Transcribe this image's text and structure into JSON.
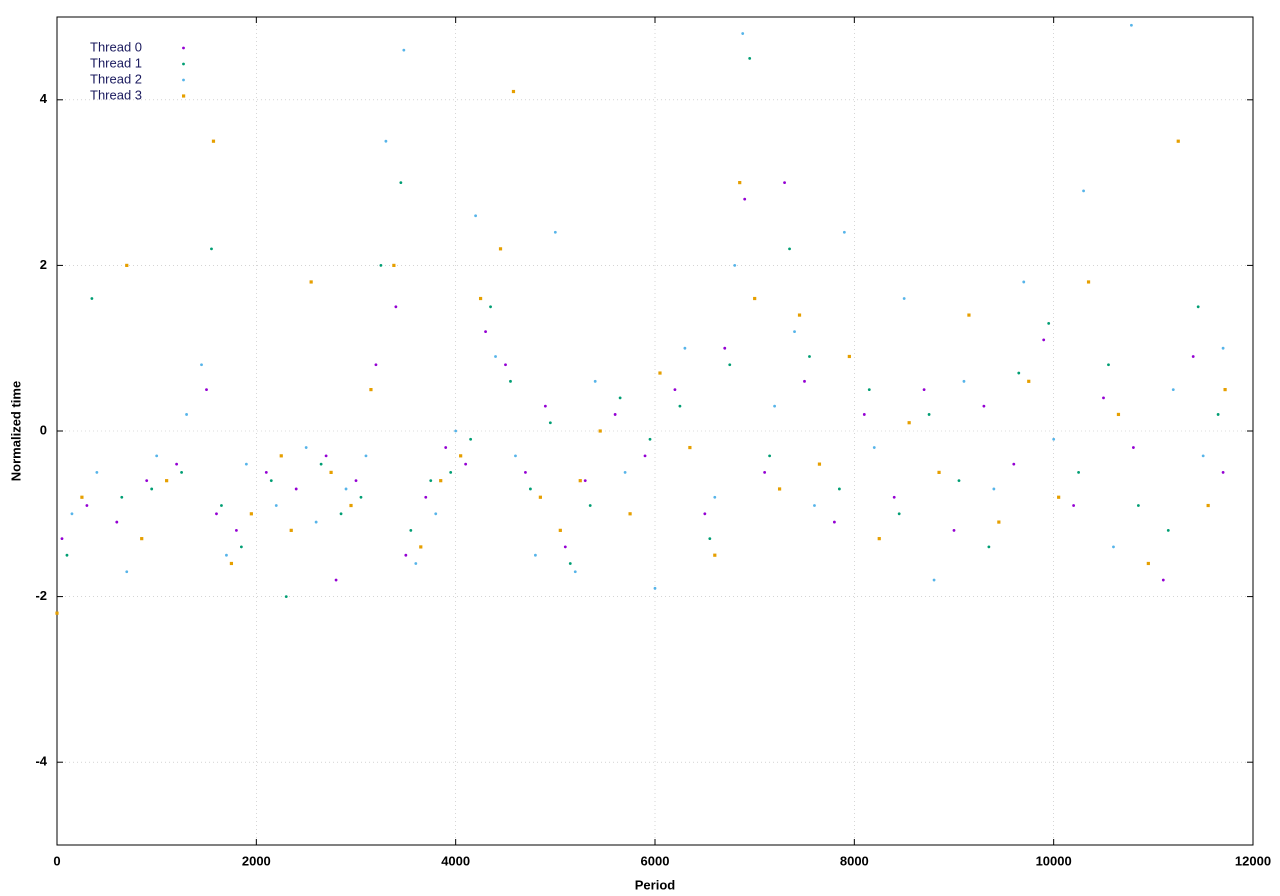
{
  "chart_data": {
    "type": "scatter",
    "x_label": "Period",
    "y_label": "Normalized time",
    "xlim": [
      0,
      12000
    ],
    "ylim": [
      -5,
      5
    ],
    "xticks": [
      0,
      2000,
      4000,
      6000,
      8000,
      10000,
      12000
    ],
    "yticks": [
      -4,
      -2,
      0,
      2,
      4
    ],
    "grid": true,
    "legend": "top-left",
    "series": [
      {
        "name": "Thread 0",
        "color": "#9400d3",
        "marker": "dot",
        "x": [
          50,
          300,
          600,
          900,
          1200,
          1500,
          1600,
          1800,
          2100,
          2400,
          2700,
          2800,
          3000,
          3200,
          3400,
          3500,
          3700,
          3900,
          4100,
          4300,
          4500,
          4700,
          4900,
          5100,
          5300,
          5600,
          5900,
          6200,
          6500,
          6700,
          6900,
          7100,
          7300,
          7500,
          7800,
          8100,
          8400,
          8700,
          9000,
          9300,
          9600,
          9900,
          10200,
          10500,
          10800,
          11100,
          11400,
          11700
        ],
        "values": [
          -1.3,
          -0.9,
          -1.1,
          -0.6,
          -0.4,
          0.5,
          -1.0,
          -1.2,
          -0.5,
          -0.7,
          -0.3,
          -1.8,
          -0.6,
          0.8,
          1.5,
          -1.5,
          -0.8,
          -0.2,
          -0.4,
          1.2,
          0.8,
          -0.5,
          0.3,
          -1.4,
          -0.6,
          0.2,
          -0.3,
          0.5,
          -1.0,
          1.0,
          2.8,
          -0.5,
          3.0,
          0.6,
          -1.1,
          0.2,
          -0.8,
          0.5,
          -1.2,
          0.3,
          -0.4,
          1.1,
          -0.9,
          0.4,
          -0.2,
          -1.8,
          0.9,
          -0.5
        ]
      },
      {
        "name": "Thread 1",
        "color": "#009e73",
        "marker": "dot",
        "x": [
          100,
          350,
          650,
          950,
          1250,
          1550,
          1650,
          1850,
          2150,
          2300,
          2650,
          2850,
          3050,
          3250,
          3450,
          3550,
          3750,
          3950,
          4150,
          4350,
          4550,
          4750,
          4950,
          5150,
          5350,
          5650,
          5950,
          6250,
          6550,
          6750,
          6950,
          7150,
          7350,
          7550,
          7850,
          8150,
          8450,
          8750,
          9050,
          9350,
          9650,
          9950,
          10250,
          10550,
          10850,
          11150,
          11450,
          11650
        ],
        "values": [
          -1.5,
          1.6,
          -0.8,
          -0.7,
          -0.5,
          2.2,
          -0.9,
          -1.4,
          -0.6,
          -2.0,
          -0.4,
          -1.0,
          -0.8,
          2.0,
          3.0,
          -1.2,
          -0.6,
          -0.5,
          -0.1,
          1.5,
          0.6,
          -0.7,
          0.1,
          -1.6,
          -0.9,
          0.4,
          -0.1,
          0.3,
          -1.3,
          0.8,
          4.5,
          -0.3,
          2.2,
          0.9,
          -0.7,
          0.5,
          -1.0,
          0.2,
          -0.6,
          -1.4,
          0.7,
          1.3,
          -0.5,
          0.8,
          -0.9,
          -1.2,
          1.5,
          0.2
        ]
      },
      {
        "name": "Thread 2",
        "color": "#56b4e9",
        "marker": "dot",
        "x": [
          150,
          400,
          700,
          1000,
          1300,
          1450,
          1700,
          1900,
          2200,
          2500,
          2600,
          2900,
          3100,
          3300,
          3480,
          3600,
          3800,
          4000,
          4200,
          4400,
          4600,
          4800,
          5000,
          5200,
          5400,
          5700,
          6000,
          6300,
          6600,
          6800,
          6880,
          7200,
          7400,
          7600,
          7900,
          8200,
          8500,
          8800,
          9100,
          9400,
          9700,
          10000,
          10300,
          10600,
          10780,
          11200,
          11500,
          11700
        ],
        "values": [
          -1.0,
          -0.5,
          -1.7,
          -0.3,
          0.2,
          0.8,
          -1.5,
          -0.4,
          -0.9,
          -0.2,
          -1.1,
          -0.7,
          -0.3,
          3.5,
          4.6,
          -1.6,
          -1.0,
          0.0,
          2.6,
          0.9,
          -0.3,
          -1.5,
          2.4,
          -1.7,
          0.6,
          -0.5,
          -1.9,
          1.0,
          -0.8,
          2.0,
          4.8,
          0.3,
          1.2,
          -0.9,
          2.4,
          -0.2,
          1.6,
          -1.8,
          0.6,
          -0.7,
          1.8,
          -0.1,
          2.9,
          -1.4,
          4.9,
          0.5,
          -0.3,
          1.0
        ]
      },
      {
        "name": "Thread 3",
        "color": "#e69f00",
        "marker": "square",
        "x": [
          0,
          250,
          700,
          850,
          1100,
          1570,
          1750,
          1950,
          2250,
          2350,
          2550,
          2750,
          2950,
          3150,
          3380,
          3650,
          3850,
          4050,
          4250,
          4450,
          4580,
          4850,
          5050,
          5250,
          5450,
          5750,
          6050,
          6350,
          6600,
          6850,
          7000,
          7250,
          7450,
          7650,
          7950,
          8250,
          8550,
          8850,
          9150,
          9450,
          9750,
          10050,
          10350,
          10650,
          10950,
          11250,
          11550,
          11720
        ],
        "values": [
          -2.2,
          -0.8,
          2.0,
          -1.3,
          -0.6,
          3.5,
          -1.6,
          -1.0,
          -0.3,
          -1.2,
          1.8,
          -0.5,
          -0.9,
          0.5,
          2.0,
          -1.4,
          -0.6,
          -0.3,
          1.6,
          2.2,
          4.1,
          -0.8,
          -1.2,
          -0.6,
          0.0,
          -1.0,
          0.7,
          -0.2,
          -1.5,
          3.0,
          1.6,
          -0.7,
          1.4,
          -0.4,
          0.9,
          -1.3,
          0.1,
          -0.5,
          1.4,
          -1.1,
          0.6,
          -0.8,
          1.8,
          0.2,
          -1.6,
          3.5,
          -0.9,
          0.5
        ]
      }
    ]
  }
}
